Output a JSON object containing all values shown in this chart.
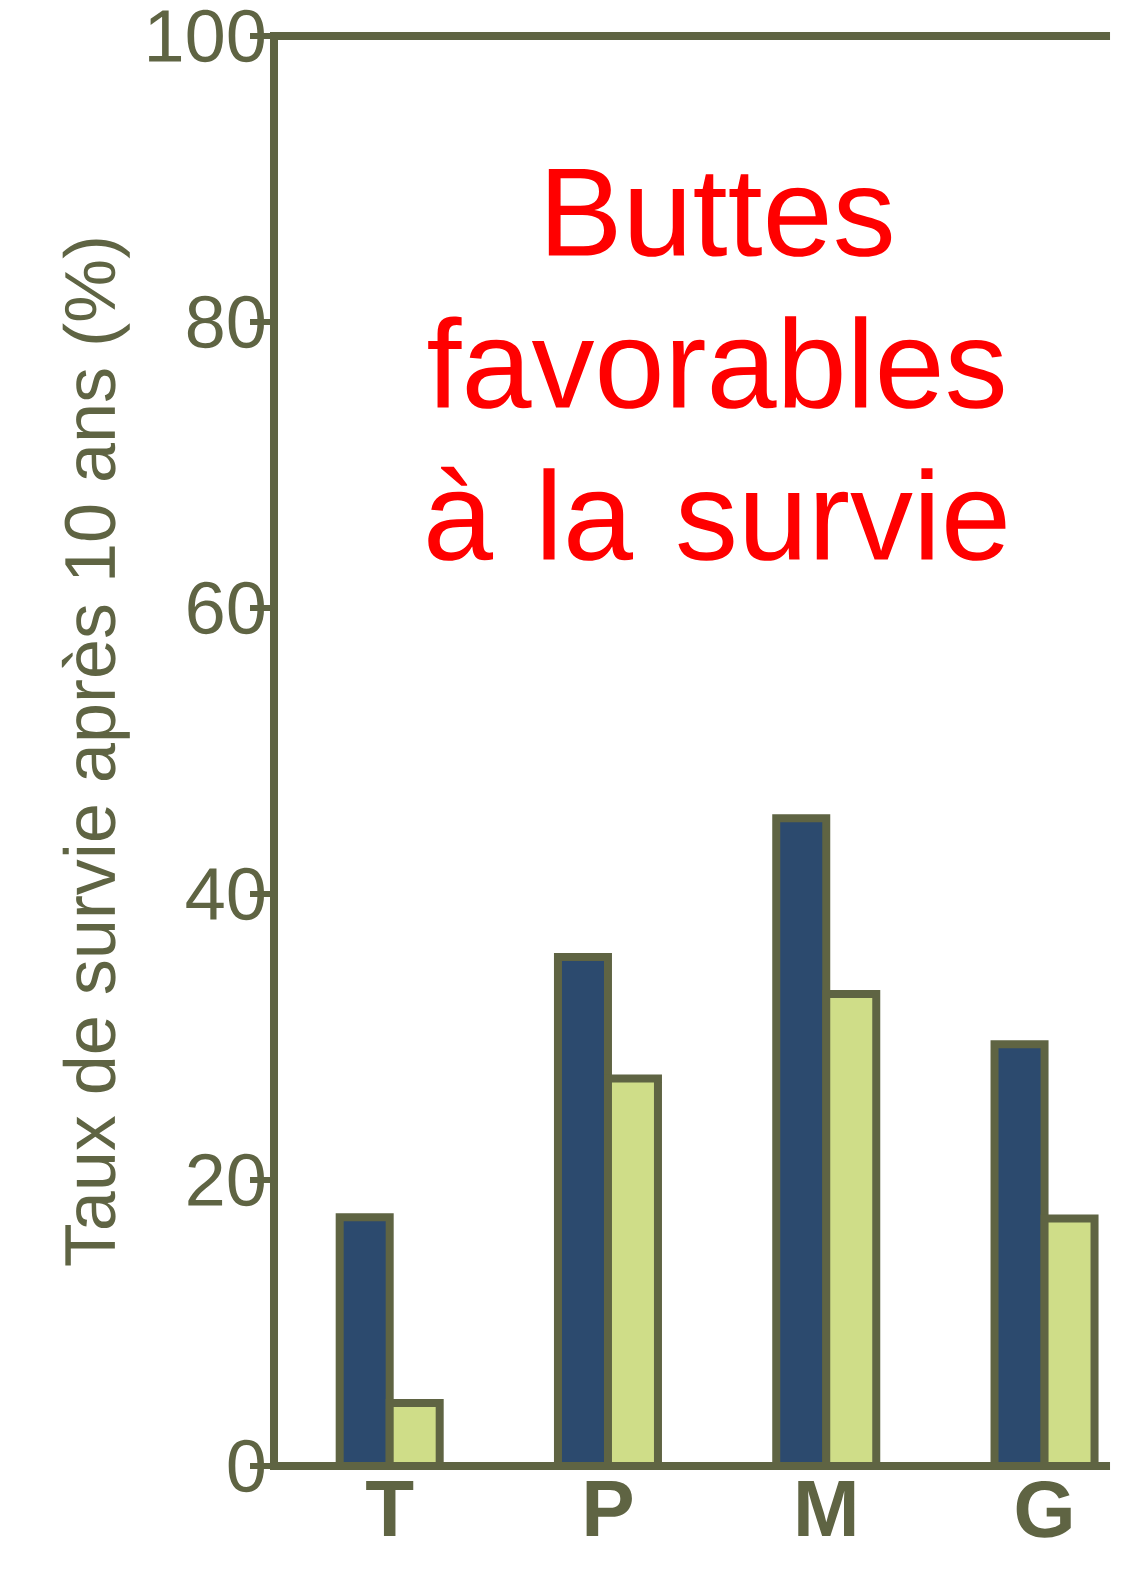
{
  "chart_data": {
    "type": "bar",
    "ylabel": "Taux de survie après 10 ans (%)",
    "annotations": [
      "Buttes favorables à la survie"
    ],
    "categories": [
      "T",
      "P",
      "M",
      "G"
    ],
    "series": [
      {
        "color": "#2c4a6e",
        "values": [
          17.4,
          35.6,
          45.3,
          29.5
        ]
      },
      {
        "color": "#cfdd88",
        "values": [
          4.4,
          27.1,
          33.0,
          17.3
        ]
      }
    ],
    "ylim": [
      0,
      100
    ],
    "yticks": [
      0,
      20,
      40,
      60,
      80,
      100
    ]
  }
}
